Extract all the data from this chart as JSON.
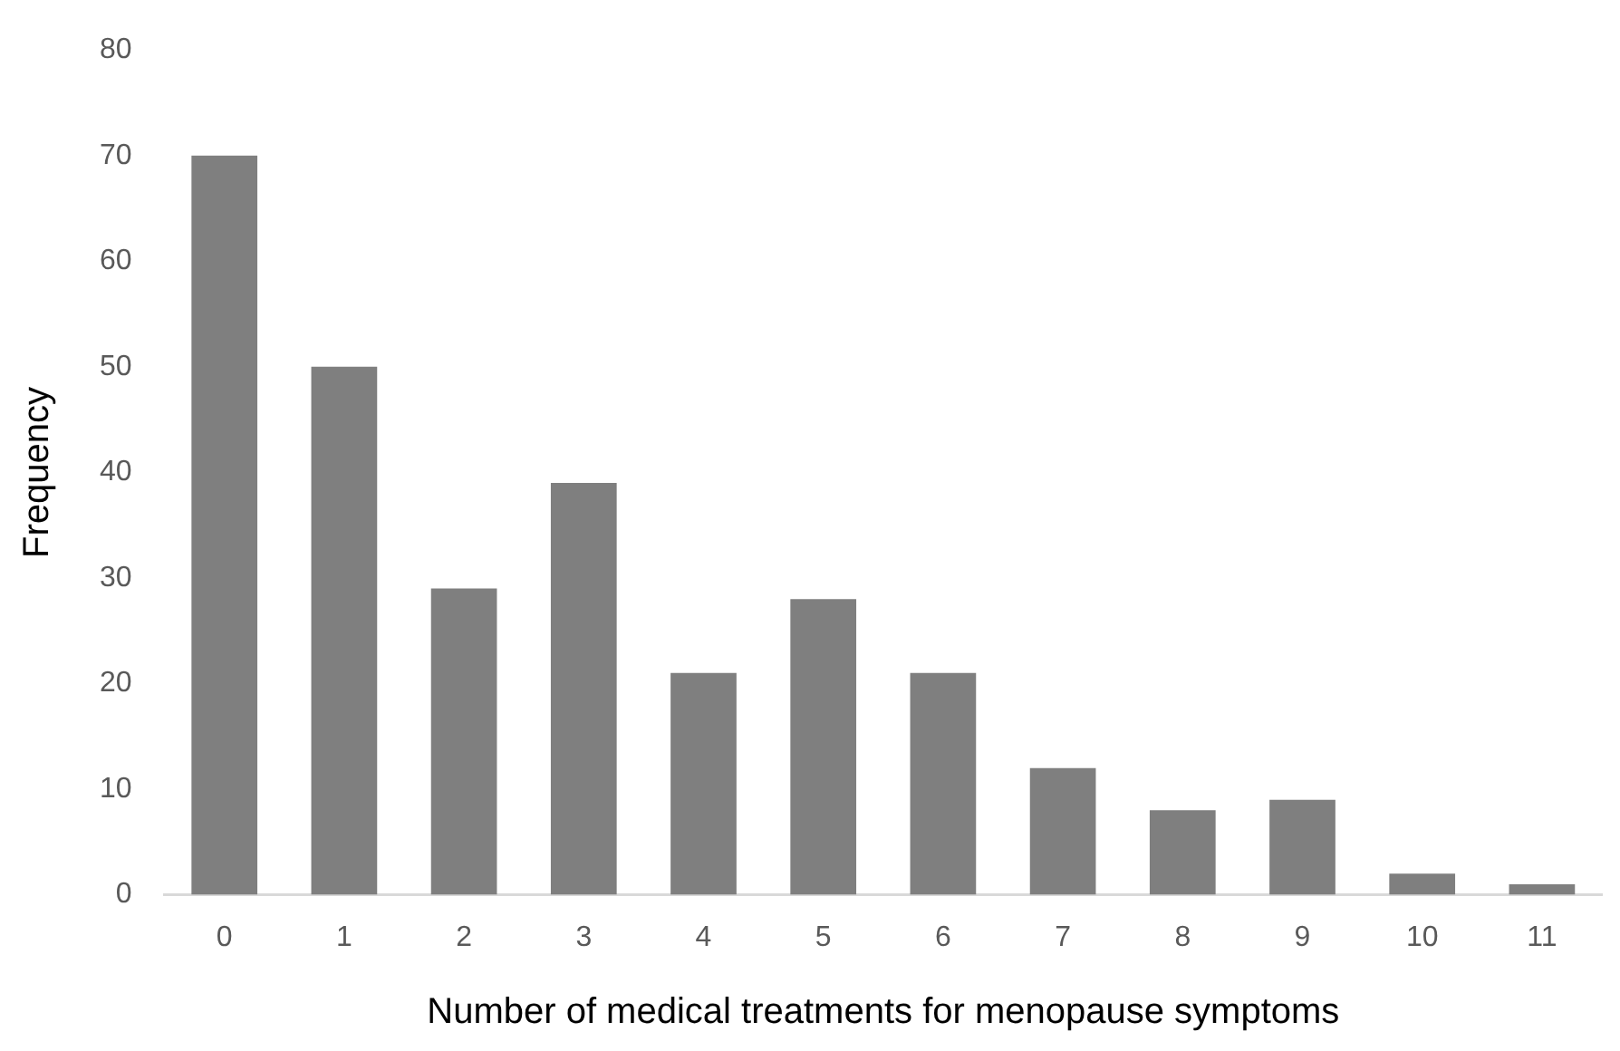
{
  "chart_data": {
    "type": "bar",
    "xlabel": "Number of medical treatments for menopause symptoms",
    "ylabel": "Frequency",
    "categories": [
      "0",
      "1",
      "2",
      "3",
      "4",
      "5",
      "6",
      "7",
      "8",
      "9",
      "10",
      "11"
    ],
    "values": [
      70,
      50,
      29,
      39,
      21,
      28,
      21,
      12,
      8,
      9,
      2,
      1
    ],
    "color": "#7f7f7f",
    "ylim": [
      0,
      80
    ],
    "yticks": [
      0,
      10,
      20,
      30,
      40,
      50,
      60,
      70,
      80
    ],
    "grid": false,
    "legend": false
  }
}
